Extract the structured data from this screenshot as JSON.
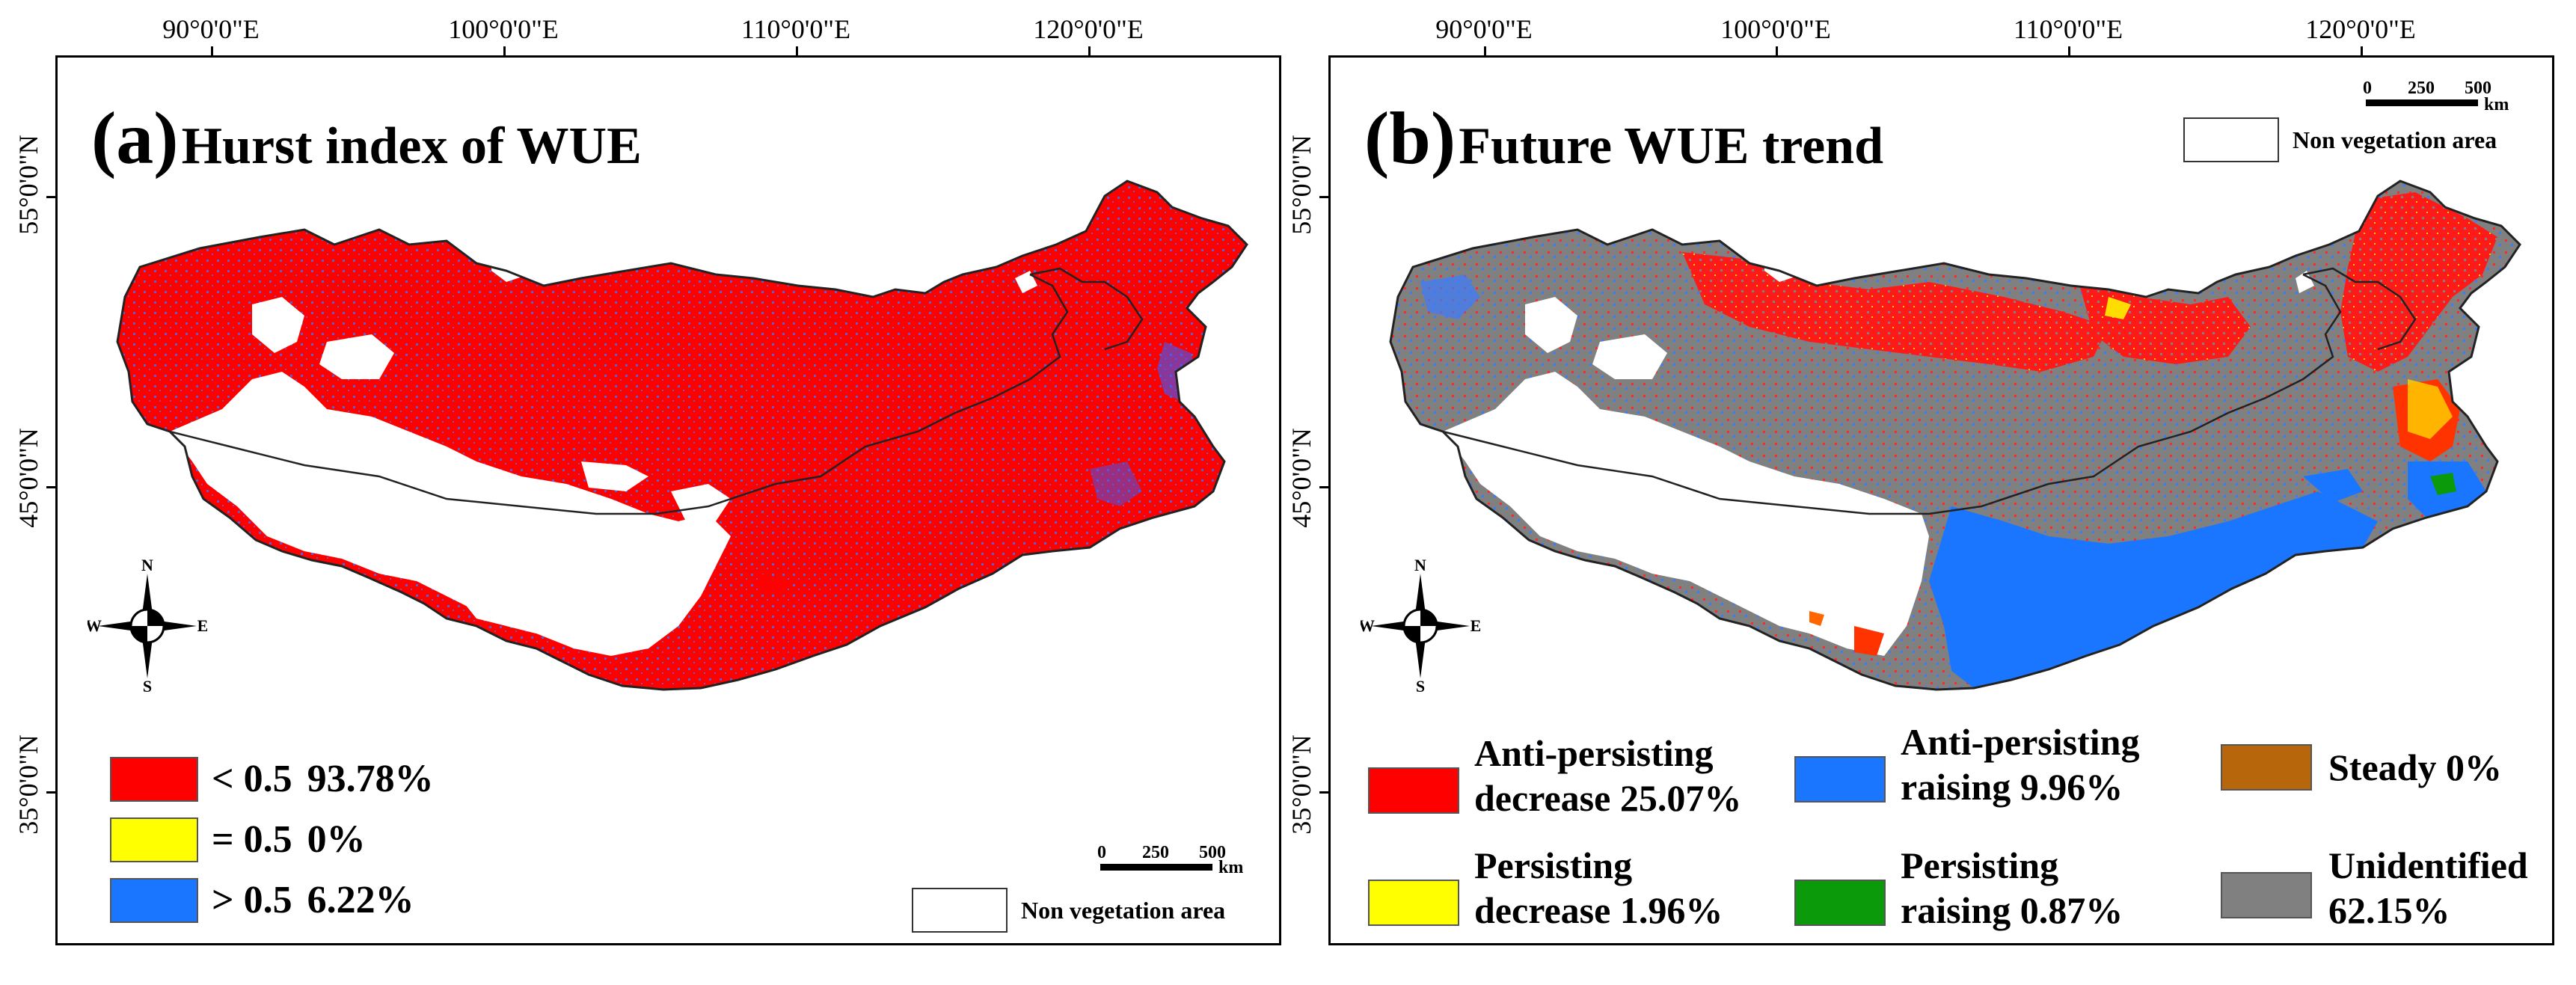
{
  "axes": {
    "longitude_labels": [
      "90°0'0\"E",
      "100°0'0\"E",
      "110°0'0\"E",
      "120°0'0\"E"
    ],
    "latitude_labels": [
      "55°0'0\"N",
      "45°0'0\"N",
      "35°0'0\"N"
    ]
  },
  "panel_a": {
    "letter": "(a)",
    "title": "Hurst index of WUE",
    "legend": [
      {
        "symbol": "< 0.5",
        "value": "93.78%",
        "color": "#ff0000"
      },
      {
        "symbol": "= 0.5",
        "value": "0%",
        "color": "#ffff00"
      },
      {
        "symbol": "> 0.5",
        "value": "6.22%",
        "color": "#1a75ff"
      }
    ],
    "scale": {
      "ticks": [
        "0",
        "250",
        "500"
      ],
      "unit": "km"
    },
    "non_vegetation_label": "Non vegetation area"
  },
  "panel_b": {
    "letter": "(b)",
    "title": "Future WUE trend",
    "legend": [
      {
        "line1": "Anti-persisting",
        "line2": "decrease  25.07%",
        "color": "#ff0000"
      },
      {
        "line1": "Anti-persisting",
        "line2": "raising  9.96%",
        "color": "#1a75ff"
      },
      {
        "line1": "Steady 0%",
        "line2": "",
        "color": "#b8660b"
      },
      {
        "line1": "Persisting",
        "line2": "decrease  1.96%",
        "color": "#ffff00"
      },
      {
        "line1": "Persisting",
        "line2": "raising  0.87%",
        "color": "#0a9a0a"
      },
      {
        "line1": "Unidentified",
        "line2": "62.15%",
        "color": "#808080"
      }
    ],
    "scale": {
      "ticks": [
        "0",
        "250",
        "500"
      ],
      "unit": "km"
    },
    "non_vegetation_label": "Non vegetation area"
  },
  "compass": {
    "n": "N",
    "s": "S",
    "e": "E",
    "w": "W"
  },
  "colors": {
    "red": "#ff0000",
    "blue": "#1a75ff",
    "yellow": "#ffff00",
    "gray": "#808080",
    "green": "#0a9a0a",
    "brown": "#b8660b",
    "outline": "#222222"
  }
}
